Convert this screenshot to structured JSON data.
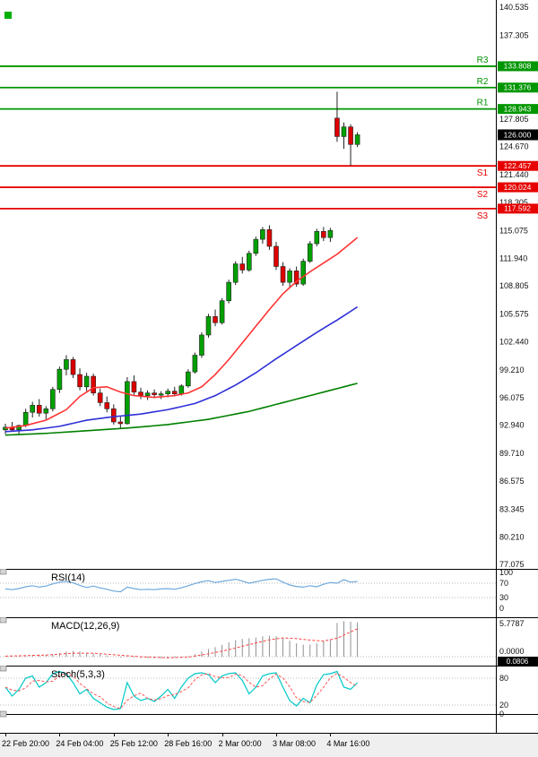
{
  "colors": {
    "res_green": "#009600",
    "sup_red": "#e60000",
    "price_box": "#000000",
    "bull": "#00a000",
    "bear": "#dd0000",
    "outline": "#222222",
    "ma_fast": "#ff3333",
    "ma_mid": "#2f2fd8",
    "ma_slow": "#008000",
    "rsi_line": "#6fa8dc",
    "macd_bar": "#909090",
    "macd_signal": "#ff4040",
    "stoch_k": "#00c8c8",
    "stoch_d": "#ff5555",
    "grid_dot": "#b8b8b8",
    "axis_text": "#111111",
    "divider": "#000000",
    "marker_green": "#00b000"
  },
  "chart_data": {
    "type": "candlestick",
    "ylim": [
      77.075,
      140.535
    ],
    "price_axis_labels": [
      "140.535",
      "137.305",
      "127.805",
      "124.670",
      "121.440",
      "118.305",
      "115.075",
      "111.940",
      "108.805",
      "105.575",
      "102.440",
      "99.210",
      "96.075",
      "92.940",
      "89.710",
      "86.575",
      "83.345",
      "80.210",
      "77.075"
    ],
    "time_axis_labels": [
      {
        "index": 0,
        "text": "22 Feb 20:00"
      },
      {
        "index": 8,
        "text": "24 Feb 04:00"
      },
      {
        "index": 16,
        "text": "25 Feb 12:00"
      },
      {
        "index": 24,
        "text": "28 Feb 16:00"
      },
      {
        "index": 32,
        "text": "2 Mar 00:00"
      },
      {
        "index": 40,
        "text": "3 Mar 08:00"
      },
      {
        "index": 48,
        "text": "4 Mar 16:00"
      }
    ],
    "current_price": {
      "value": 126.0,
      "label": "126.000"
    },
    "levels": [
      {
        "name": "R3",
        "value": 133.808,
        "label": "133.808",
        "type": "resistance"
      },
      {
        "name": "R2",
        "value": 131.376,
        "label": "131.376",
        "type": "resistance"
      },
      {
        "name": "R1",
        "value": 128.943,
        "label": "128.943",
        "type": "resistance"
      },
      {
        "name": "S1",
        "value": 122.457,
        "label": "122.457",
        "type": "support"
      },
      {
        "name": "S2",
        "value": 120.024,
        "label": "120.024",
        "type": "support"
      },
      {
        "name": "S3",
        "value": 117.592,
        "label": "117.592",
        "type": "support"
      }
    ],
    "candles": [
      [
        92.4,
        93.1,
        91.9,
        92.7
      ],
      [
        92.7,
        93.3,
        92.2,
        92.4
      ],
      [
        92.4,
        93.0,
        91.8,
        92.9
      ],
      [
        92.9,
        94.8,
        92.7,
        94.4
      ],
      [
        94.4,
        95.6,
        93.8,
        95.2
      ],
      [
        95.2,
        95.9,
        93.9,
        94.3
      ],
      [
        94.3,
        95.1,
        93.6,
        94.8
      ],
      [
        94.8,
        97.3,
        94.5,
        97.0
      ],
      [
        97.0,
        99.6,
        96.6,
        99.3
      ],
      [
        99.3,
        100.9,
        98.6,
        100.4
      ],
      [
        100.4,
        100.7,
        98.3,
        98.7
      ],
      [
        98.7,
        99.4,
        96.9,
        97.3
      ],
      [
        97.3,
        98.9,
        96.8,
        98.5
      ],
      [
        98.5,
        98.8,
        96.3,
        96.6
      ],
      [
        96.6,
        97.1,
        95.1,
        95.5
      ],
      [
        95.5,
        96.2,
        94.4,
        94.8
      ],
      [
        94.8,
        95.3,
        93.0,
        93.3
      ],
      [
        93.3,
        93.9,
        92.6,
        93.1
      ],
      [
        93.1,
        98.4,
        93.0,
        97.9
      ],
      [
        97.9,
        98.6,
        96.4,
        96.7
      ],
      [
        96.7,
        97.2,
        95.9,
        96.3
      ],
      [
        96.3,
        96.9,
        95.8,
        96.6
      ],
      [
        96.6,
        97.0,
        96.0,
        96.4
      ],
      [
        96.4,
        96.8,
        95.9,
        96.5
      ],
      [
        96.5,
        97.1,
        96.1,
        96.8
      ],
      [
        96.8,
        97.3,
        96.2,
        96.5
      ],
      [
        96.5,
        97.6,
        96.3,
        97.4
      ],
      [
        97.4,
        99.3,
        97.2,
        99.0
      ],
      [
        99.0,
        101.2,
        98.8,
        100.9
      ],
      [
        100.9,
        103.5,
        100.6,
        103.2
      ],
      [
        103.2,
        105.6,
        102.9,
        105.3
      ],
      [
        105.3,
        106.1,
        104.2,
        104.6
      ],
      [
        104.6,
        107.4,
        104.4,
        107.1
      ],
      [
        107.1,
        109.5,
        106.8,
        109.2
      ],
      [
        109.2,
        111.6,
        108.9,
        111.3
      ],
      [
        111.3,
        112.1,
        110.2,
        110.6
      ],
      [
        110.6,
        112.8,
        110.4,
        112.5
      ],
      [
        112.5,
        114.4,
        112.2,
        114.1
      ],
      [
        114.1,
        115.5,
        113.6,
        115.2
      ],
      [
        115.2,
        115.7,
        112.9,
        113.3
      ],
      [
        113.3,
        113.8,
        110.6,
        111.0
      ],
      [
        111.0,
        111.5,
        108.8,
        109.2
      ],
      [
        109.2,
        110.8,
        108.5,
        110.5
      ],
      [
        110.5,
        111.0,
        108.7,
        109.0
      ],
      [
        109.0,
        111.9,
        108.8,
        111.6
      ],
      [
        111.6,
        113.9,
        111.4,
        113.6
      ],
      [
        113.6,
        115.3,
        113.3,
        115.0
      ],
      [
        115.0,
        115.5,
        113.9,
        114.3
      ],
      [
        114.3,
        115.4,
        113.8,
        115.1
      ],
      [
        127.9,
        130.9,
        125.2,
        125.8
      ],
      [
        125.8,
        127.4,
        124.4,
        126.9
      ],
      [
        126.9,
        127.2,
        122.5,
        124.9
      ],
      [
        124.9,
        126.3,
        124.6,
        126.0
      ]
    ],
    "moving_averages": [
      {
        "name": "ma-fast-red",
        "color_key": "ma_fast",
        "points": [
          [
            0,
            92.6
          ],
          [
            3,
            92.9
          ],
          [
            6,
            93.5
          ],
          [
            9,
            94.7
          ],
          [
            11,
            96.2
          ],
          [
            13,
            97.2
          ],
          [
            15,
            97.3
          ],
          [
            17,
            96.7
          ],
          [
            19,
            96.3
          ],
          [
            22,
            96.1
          ],
          [
            25,
            96.3
          ],
          [
            27,
            96.6
          ],
          [
            29,
            97.3
          ],
          [
            31,
            98.7
          ],
          [
            33,
            100.4
          ],
          [
            35,
            102.3
          ],
          [
            37,
            104.2
          ],
          [
            39,
            106.1
          ],
          [
            41,
            107.9
          ],
          [
            43,
            109.3
          ],
          [
            45,
            110.4
          ],
          [
            47,
            111.4
          ],
          [
            49,
            112.4
          ],
          [
            52,
            114.3
          ]
        ]
      },
      {
        "name": "ma-mid-blue",
        "color_key": "ma_mid",
        "points": [
          [
            0,
            92.2
          ],
          [
            4,
            92.4
          ],
          [
            8,
            92.8
          ],
          [
            12,
            93.5
          ],
          [
            16,
            93.9
          ],
          [
            20,
            94.2
          ],
          [
            24,
            94.7
          ],
          [
            28,
            95.4
          ],
          [
            31,
            96.3
          ],
          [
            34,
            97.5
          ],
          [
            37,
            98.9
          ],
          [
            40,
            100.5
          ],
          [
            43,
            102.0
          ],
          [
            46,
            103.5
          ],
          [
            49,
            104.9
          ],
          [
            52,
            106.4
          ]
        ]
      },
      {
        "name": "ma-slow-green",
        "color_key": "ma_slow",
        "points": [
          [
            0,
            91.8
          ],
          [
            6,
            92.0
          ],
          [
            12,
            92.3
          ],
          [
            18,
            92.6
          ],
          [
            24,
            93.0
          ],
          [
            30,
            93.6
          ],
          [
            36,
            94.5
          ],
          [
            42,
            95.7
          ],
          [
            48,
            96.9
          ],
          [
            52,
            97.7
          ]
        ]
      }
    ],
    "indicators": {
      "rsi": {
        "name": "RSI(14)",
        "range": [
          0,
          100
        ],
        "levels": [
          70,
          30
        ],
        "axis_labels": [
          {
            "text": "100",
            "value": 100
          },
          {
            "text": "70",
            "value": 70
          },
          {
            "text": "30",
            "value": 30
          },
          {
            "text": "0",
            "value": 0
          }
        ],
        "values": [
          54,
          52,
          55,
          60,
          63,
          59,
          62,
          68,
          73,
          75,
          71,
          64,
          58,
          62,
          57,
          53,
          48,
          46,
          59,
          55,
          52,
          53,
          52,
          54,
          55,
          53,
          57,
          63,
          69,
          74,
          77,
          72,
          75,
          78,
          81,
          76,
          70,
          74,
          78,
          81,
          82,
          73,
          65,
          61,
          59,
          63,
          60,
          67,
          72,
          70,
          80,
          73,
          75
        ]
      },
      "macd": {
        "name": "MACD(12,26,9)",
        "scale_max": 5.7787,
        "axis_labels": [
          {
            "text": "5.7787",
            "value": 5.7787
          },
          {
            "text": "0.0000",
            "value": 0
          }
        ],
        "boxed_value": "0.0806",
        "histogram": [
          0.1,
          0.12,
          0.1,
          0.18,
          0.28,
          0.32,
          0.3,
          0.4,
          0.6,
          0.8,
          0.9,
          0.8,
          0.6,
          0.5,
          0.38,
          0.2,
          0.0,
          -0.15,
          -0.05,
          -0.1,
          -0.18,
          -0.2,
          -0.25,
          -0.25,
          -0.2,
          -0.18,
          -0.1,
          0.1,
          0.4,
          0.8,
          1.2,
          1.5,
          1.85,
          2.25,
          2.6,
          2.8,
          2.9,
          3.0,
          3.2,
          3.3,
          3.2,
          2.9,
          2.5,
          2.1,
          1.9,
          1.9,
          2.1,
          2.4,
          2.6,
          5.3,
          5.6,
          5.5,
          5.4
        ],
        "signal_points": [
          [
            0,
            0.08
          ],
          [
            6,
            0.25
          ],
          [
            10,
            0.55
          ],
          [
            13,
            0.55
          ],
          [
            16,
            0.3
          ],
          [
            20,
            -0.02
          ],
          [
            24,
            -0.18
          ],
          [
            27,
            -0.08
          ],
          [
            30,
            0.45
          ],
          [
            33,
            1.1
          ],
          [
            36,
            1.9
          ],
          [
            39,
            2.65
          ],
          [
            41,
            2.95
          ],
          [
            43,
            2.85
          ],
          [
            45,
            2.6
          ],
          [
            47,
            2.45
          ],
          [
            49,
            2.9
          ],
          [
            51,
            3.9
          ],
          [
            52,
            4.4
          ]
        ]
      },
      "stoch": {
        "name": "Stoch(5,3,3)",
        "range": [
          0,
          100
        ],
        "levels": [
          80,
          20
        ],
        "axis_labels": [
          {
            "text": "80",
            "value": 80
          },
          {
            "text": "20",
            "value": 20
          },
          {
            "text": "0",
            "value": 0
          }
        ],
        "k_values": [
          60,
          40,
          55,
          80,
          85,
          60,
          70,
          90,
          95,
          90,
          70,
          45,
          55,
          35,
          25,
          15,
          10,
          12,
          70,
          40,
          30,
          35,
          28,
          40,
          55,
          35,
          60,
          80,
          90,
          92,
          88,
          70,
          85,
          90,
          92,
          75,
          45,
          60,
          85,
          90,
          92,
          60,
          30,
          18,
          35,
          25,
          65,
          88,
          90,
          95,
          60,
          55,
          70
        ]
      }
    }
  }
}
